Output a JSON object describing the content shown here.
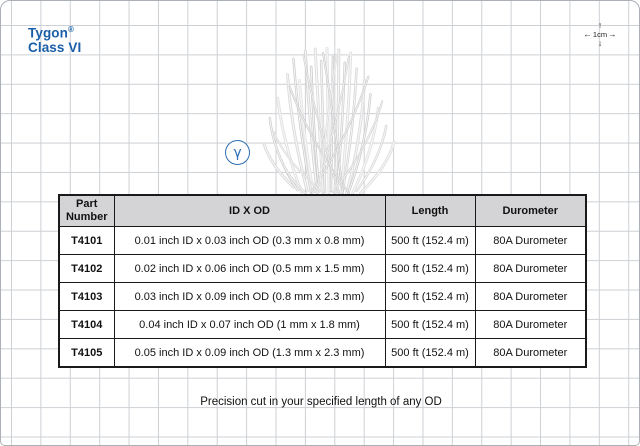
{
  "brand": {
    "name": "Tygon",
    "registered": "®",
    "line2": "Class VI"
  },
  "scale_marker": {
    "label": "1cm"
  },
  "icons": {
    "arrow_up": "↑",
    "arrow_down": "↓",
    "arrow_left": "←",
    "arrow_right": "→",
    "gamma": "γ"
  },
  "gamma_badge": {
    "symbol": "γ",
    "meaning": "gamma sterilizable badge"
  },
  "product_image": {
    "alt": "bundle of thin white microbore tubing"
  },
  "footer_note": "Precision cut in your specified length of any OD",
  "table": {
    "headers": [
      "Part Number",
      "ID X OD",
      "Length",
      "Durometer"
    ],
    "rows": [
      {
        "part": "T4101",
        "id_od": "0.01 inch ID x 0.03 inch OD (0.3 mm x 0.8 mm)",
        "length": "500 ft (152.4 m)",
        "durometer": "80A Durometer"
      },
      {
        "part": "T4102",
        "id_od": "0.02 inch ID x 0.06 inch OD (0.5 mm x 1.5 mm)",
        "length": "500 ft (152.4 m)",
        "durometer": "80A Durometer"
      },
      {
        "part": "T4103",
        "id_od": "0.03 inch ID x 0.09 inch OD (0.8 mm x 2.3 mm)",
        "length": "500 ft (152.4 m)",
        "durometer": "80A Durometer"
      },
      {
        "part": "T4104",
        "id_od": "0.04 inch ID x 0.07 inch OD (1 mm x 1.8 mm)",
        "length": "500 ft (152.4 m)",
        "durometer": "80A Durometer"
      },
      {
        "part": "T4105",
        "id_od": "0.05 inch ID x 0.09 inch OD (1.3 mm x 2.3 mm)",
        "length": "500 ft (152.4 m)",
        "durometer": "80A Durometer"
      }
    ]
  },
  "colors": {
    "brand_blue": "#1a5fa8",
    "gamma_blue": "#2f6fb7",
    "header_gray": "#d4d4d6",
    "grid_line": "#cdd0d5",
    "table_border": "#1a1a1a"
  }
}
